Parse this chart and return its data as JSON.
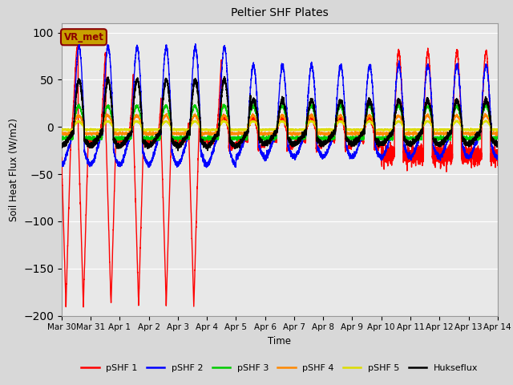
{
  "title": "Peltier SHF Plates",
  "ylabel": "Soil Heat Flux (W/m2)",
  "xlabel": "Time",
  "ylim": [
    -200,
    110
  ],
  "xlim": [
    0,
    15
  ],
  "background_color": "#d8d8d8",
  "plot_bg": "#e8e8e8",
  "annotation_text": "VR_met",
  "annotation_bg": "#c8a000",
  "series_colors": {
    "pSHF 1": "#ff0000",
    "pSHF 2": "#0000ff",
    "pSHF 3": "#00cc00",
    "pSHF 4": "#ff8800",
    "pSHF 5": "#dddd00",
    "Hukseflux": "#000000"
  },
  "xtick_labels": [
    "Mar 30",
    "Mar 31",
    "Apr 1",
    "Apr 2",
    "Apr 3",
    "Apr 4",
    "Apr 5",
    "Apr 6",
    "Apr 7",
    "Apr 8",
    "Apr 9",
    "Apr 10",
    "Apr 11",
    "Apr 12",
    "Apr 13",
    "Apr 14"
  ],
  "xtick_positions": [
    0,
    1,
    2,
    3,
    4,
    5,
    6,
    7,
    8,
    9,
    10,
    11,
    12,
    13,
    14,
    15
  ],
  "ytick_positions": [
    -200,
    -150,
    -100,
    -50,
    0,
    50,
    100
  ]
}
